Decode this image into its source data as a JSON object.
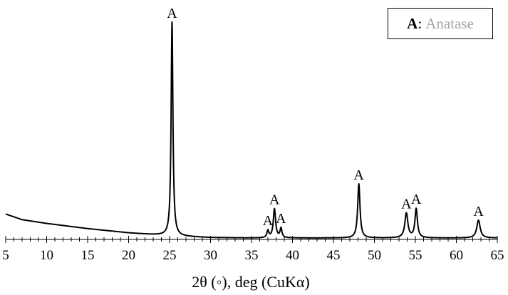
{
  "chart_data": {
    "type": "line",
    "xlabel": "2θ (◦), deg (CuKα)",
    "ylabel": "",
    "xlim": [
      5,
      65
    ],
    "xticks": [
      5,
      10,
      15,
      20,
      25,
      30,
      35,
      40,
      45,
      50,
      55,
      60,
      65
    ],
    "xtick_labels": [
      "5",
      "10",
      "15",
      "20",
      "25",
      "30",
      "35",
      "40",
      "45",
      "50",
      "55",
      "60",
      "65"
    ],
    "minor_tick_step": 1,
    "ylim": [
      0,
      100
    ],
    "grid": false,
    "legend": {
      "position": "top-right",
      "key": "A",
      "separator": ":",
      "name": "Anatase"
    },
    "background": {
      "x": [
        5,
        7,
        10,
        15,
        20,
        25,
        30,
        35,
        40,
        45,
        50,
        55,
        60,
        65
      ],
      "y": [
        10.8,
        8.4,
        6.8,
        4.6,
        2.8,
        1.5,
        0.8,
        0.6,
        0.6,
        0.6,
        0.6,
        0.6,
        0.6,
        0.6
      ]
    },
    "peaks": [
      {
        "x": 25.3,
        "height": 91,
        "width": 0.13,
        "label": "A"
      },
      {
        "x": 37.0,
        "height": 3.0,
        "width": 0.14,
        "label": "A"
      },
      {
        "x": 37.8,
        "height": 12.3,
        "width": 0.17,
        "label": "A"
      },
      {
        "x": 38.6,
        "height": 4.0,
        "width": 0.14,
        "label": "A"
      },
      {
        "x": 48.1,
        "height": 23,
        "width": 0.17,
        "label": "A"
      },
      {
        "x": 53.9,
        "height": 10.5,
        "width": 0.22,
        "label": "A"
      },
      {
        "x": 55.1,
        "height": 12.3,
        "width": 0.18,
        "label": "A"
      },
      {
        "x": 62.7,
        "height": 7.6,
        "width": 0.25,
        "label": "A"
      }
    ],
    "line_color": "#000000"
  }
}
